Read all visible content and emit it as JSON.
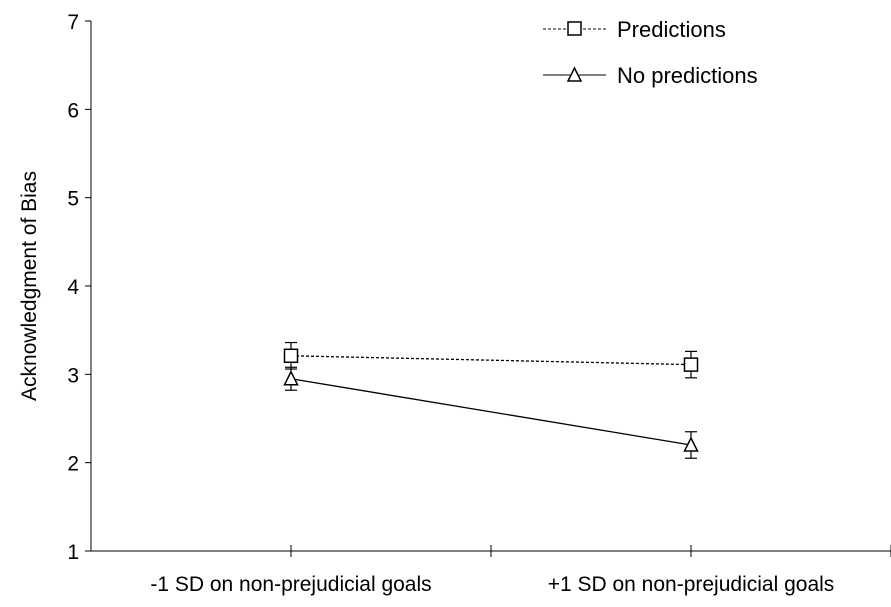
{
  "chart_data": {
    "type": "line",
    "ylabel": "Acknowledgment of Bias",
    "xlabel": "",
    "ylim": [
      1,
      7
    ],
    "yticks": [
      1,
      2,
      3,
      4,
      5,
      6,
      7
    ],
    "categories": [
      "-1 SD on non-prejudicial goals",
      "+1 SD on non-prejudicial goals"
    ],
    "series": [
      {
        "name": "Predictions",
        "values": [
          3.21,
          3.11
        ],
        "error": [
          0.15,
          0.15
        ],
        "marker": "square",
        "line_style": "dashed"
      },
      {
        "name": "No predictions",
        "values": [
          2.95,
          2.2
        ],
        "error": [
          0.13,
          0.15
        ],
        "marker": "triangle",
        "line_style": "solid"
      }
    ],
    "legend_position": "top-right",
    "grid": false
  }
}
